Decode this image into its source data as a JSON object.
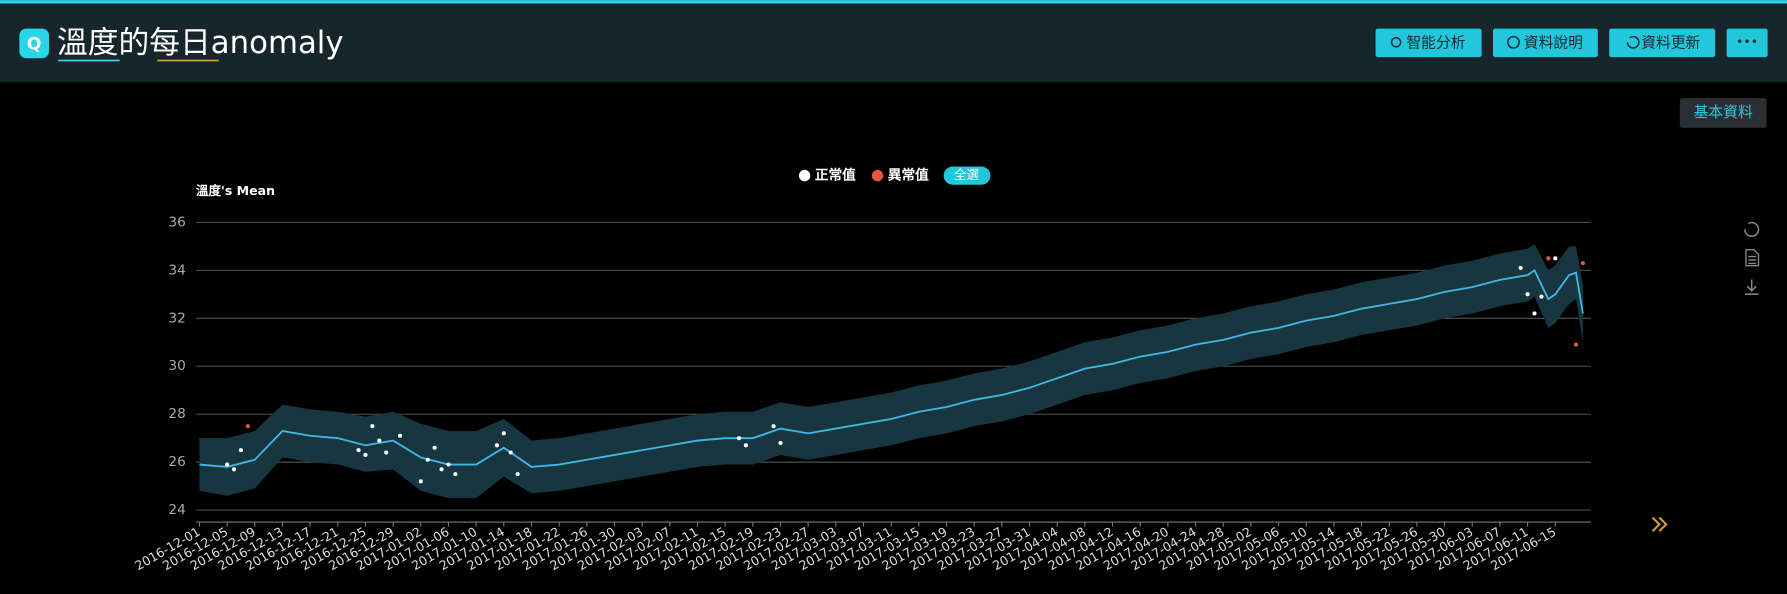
{
  "header": {
    "title": "溫度的每日anomaly",
    "icon": "Q",
    "buttons": [
      "智能分析",
      "資料說明",
      "資料更新",
      "•••"
    ]
  },
  "side_button": "基本資料",
  "chart_data": {
    "type": "line",
    "y_label": "溫度's Mean",
    "select_all": "全選",
    "color": "#3fb8e8",
    "band_color": "#173640",
    "grid": true,
    "x": [
      "2016-12-01",
      "2016-12-05",
      "2016-12-09",
      "2016-12-13",
      "2016-12-17",
      "2016-12-21",
      "2016-12-25",
      "2016-12-29",
      "2017-01-02",
      "2017-01-06",
      "2017-01-10",
      "2017-01-14",
      "2017-01-18",
      "2017-01-22",
      "2017-01-26",
      "2017-01-30",
      "2017-02-03",
      "2017-02-07",
      "2017-02-11",
      "2017-02-15",
      "2017-02-19",
      "2017-02-23",
      "2017-02-27",
      "2017-03-03",
      "2017-03-07",
      "2017-03-11",
      "2017-03-15",
      "2017-03-19",
      "2017-03-23",
      "2017-03-27",
      "2017-03-31",
      "2017-04-04",
      "2017-04-08",
      "2017-04-12",
      "2017-04-16",
      "2017-04-20",
      "2017-04-24",
      "2017-04-28",
      "2017-05-02",
      "2017-05-06",
      "2017-05-10",
      "2017-05-14",
      "2017-05-18",
      "2017-05-22",
      "2017-05-26",
      "2017-05-30",
      "2017-06-03",
      "2017-06-07",
      "2017-06-11",
      "2017-06-12",
      "2017-06-14",
      "2017-06-15",
      "2017-06-17",
      "2017-06-18",
      "2017-06-19"
    ],
    "values": [
      25.9,
      25.8,
      26.1,
      27.3,
      27.1,
      27.0,
      26.7,
      26.9,
      26.2,
      25.9,
      25.9,
      26.6,
      25.8,
      25.9,
      26.1,
      26.3,
      26.5,
      26.7,
      26.9,
      27.0,
      27.0,
      27.4,
      27.2,
      27.4,
      27.6,
      27.8,
      28.1,
      28.3,
      28.6,
      28.8,
      29.1,
      29.5,
      29.9,
      30.1,
      30.4,
      30.6,
      30.9,
      31.1,
      31.4,
      31.6,
      31.9,
      32.1,
      32.4,
      32.6,
      32.8,
      33.1,
      33.3,
      33.6,
      33.8,
      34.0,
      32.8,
      33.0,
      33.8,
      33.9,
      32.2
    ],
    "band_upper": [
      27.0,
      27.0,
      27.3,
      28.4,
      28.2,
      28.1,
      27.9,
      28.1,
      27.6,
      27.3,
      27.3,
      27.8,
      26.9,
      27.0,
      27.2,
      27.4,
      27.6,
      27.8,
      28.0,
      28.1,
      28.1,
      28.5,
      28.3,
      28.5,
      28.7,
      28.9,
      29.2,
      29.4,
      29.7,
      29.9,
      30.2,
      30.6,
      31.0,
      31.2,
      31.5,
      31.7,
      32.0,
      32.2,
      32.5,
      32.7,
      33.0,
      33.2,
      33.5,
      33.7,
      33.9,
      34.2,
      34.4,
      34.7,
      34.9,
      35.1,
      34.0,
      34.2,
      35.0,
      35.0,
      33.4
    ],
    "band_lower": [
      24.8,
      24.6,
      24.9,
      26.2,
      26.0,
      25.9,
      25.6,
      25.7,
      24.8,
      24.5,
      24.5,
      25.4,
      24.7,
      24.8,
      25.0,
      25.2,
      25.4,
      25.6,
      25.8,
      25.9,
      25.9,
      26.3,
      26.1,
      26.3,
      26.5,
      26.7,
      27.0,
      27.2,
      27.5,
      27.7,
      28.0,
      28.4,
      28.8,
      29.0,
      29.3,
      29.5,
      29.8,
      30.0,
      30.3,
      30.5,
      30.8,
      31.0,
      31.3,
      31.5,
      31.7,
      32.0,
      32.2,
      32.5,
      32.7,
      32.9,
      31.6,
      31.8,
      32.6,
      32.8,
      31.0
    ],
    "series": [
      {
        "name": "正常值",
        "color": "#ffffff",
        "x": [
          "2016-12-05",
          "2016-12-06",
          "2016-12-07",
          "2016-12-24",
          "2016-12-25",
          "2016-12-26",
          "2016-12-27",
          "2016-12-28",
          "2016-12-30",
          "2017-01-02",
          "2017-01-03",
          "2017-01-04",
          "2017-01-05",
          "2017-01-06",
          "2017-01-07",
          "2017-01-13",
          "2017-01-14",
          "2017-01-15",
          "2017-01-16",
          "2017-02-17",
          "2017-02-18",
          "2017-02-22",
          "2017-02-23",
          "2017-06-10",
          "2017-06-11",
          "2017-06-12",
          "2017-06-13",
          "2017-06-15"
        ],
        "values": [
          25.9,
          25.7,
          26.5,
          26.5,
          26.3,
          27.5,
          26.9,
          26.4,
          27.1,
          25.2,
          26.1,
          26.6,
          25.7,
          25.9,
          25.5,
          26.7,
          27.2,
          26.4,
          25.5,
          27.0,
          26.7,
          27.5,
          26.8,
          34.1,
          33.0,
          32.2,
          32.9,
          34.5
        ]
      },
      {
        "name": "異常值",
        "color": "#e8534a",
        "x": [
          "2016-12-08",
          "2017-06-14",
          "2017-06-18",
          "2017-06-19"
        ],
        "values": [
          27.5,
          34.5,
          30.9,
          34.3
        ]
      }
    ],
    "xlim": [
      "2016-12-01",
      "2017-06-20"
    ],
    "xticks": [
      "2016-12-01",
      "2016-12-05",
      "2016-12-09",
      "2016-12-13",
      "2016-12-17",
      "2016-12-21",
      "2016-12-25",
      "2016-12-29",
      "2017-01-02",
      "2017-01-06",
      "2017-01-10",
      "2017-01-14",
      "2017-01-18",
      "2017-01-22",
      "2017-01-26",
      "2017-01-30",
      "2017-02-03",
      "2017-02-07",
      "2017-02-11",
      "2017-02-15",
      "2017-02-19",
      "2017-02-23",
      "2017-02-27",
      "2017-03-03",
      "2017-03-07",
      "2017-03-11",
      "2017-03-15",
      "2017-03-19",
      "2017-03-23",
      "2017-03-27",
      "2017-03-31",
      "2017-04-04",
      "2017-04-08",
      "2017-04-12",
      "2017-04-16",
      "2017-04-20",
      "2017-04-24",
      "2017-04-28",
      "2017-05-02",
      "2017-05-06",
      "2017-05-10",
      "2017-05-14",
      "2017-05-18",
      "2017-05-22",
      "2017-05-26",
      "2017-05-30",
      "2017-06-03",
      "2017-06-07",
      "2017-06-11",
      "2017-06-15"
    ],
    "ylim": [
      23.5,
      36
    ],
    "yticks": [
      24,
      26,
      28,
      30,
      32,
      34,
      36
    ]
  }
}
